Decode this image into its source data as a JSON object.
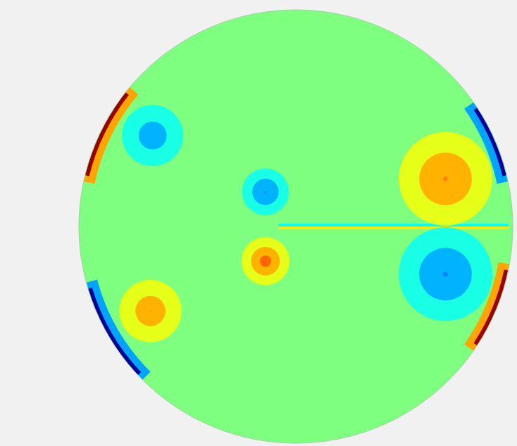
{
  "chart_data": {
    "type": "contour",
    "tick_labels": false,
    "xlim": [
      -1,
      1
    ],
    "ylim": [
      -1,
      1
    ],
    "zlim": [
      -1,
      1
    ],
    "ambient": 0,
    "levels": [
      -0.9,
      -0.7,
      -0.5,
      -0.3,
      -0.1,
      0.1,
      0.3,
      0.5,
      0.7,
      0.9
    ],
    "vortices": [
      {
        "x": -0.66,
        "y": 0.42,
        "value": -0.4,
        "radius": 0.12
      },
      {
        "x": -0.67,
        "y": -0.39,
        "value": 0.42,
        "radius": 0.12
      },
      {
        "x": -0.14,
        "y": 0.16,
        "value": -0.5,
        "radius": 0.085
      },
      {
        "x": -0.14,
        "y": -0.16,
        "value": 0.55,
        "radius": 0.085
      },
      {
        "x": 0.69,
        "y": 0.22,
        "value": 0.5,
        "radius": 0.17
      },
      {
        "x": 0.69,
        "y": -0.22,
        "value": -0.5,
        "radius": 0.17
      }
    ],
    "boundary_layers": [
      {
        "angles": [
          140,
          168
        ],
        "value": 0.95
      },
      {
        "angles": [
          195,
          225
        ],
        "value": -0.95
      },
      {
        "angles": [
          12,
          35
        ],
        "value": -0.95
      },
      {
        "angles": [
          325,
          350
        ],
        "value": 0.95
      }
    ],
    "shear_layer": {
      "x": [
        -0.08,
        0.98
      ],
      "y": 0,
      "values": [
        -0.25,
        0.3
      ]
    }
  }
}
